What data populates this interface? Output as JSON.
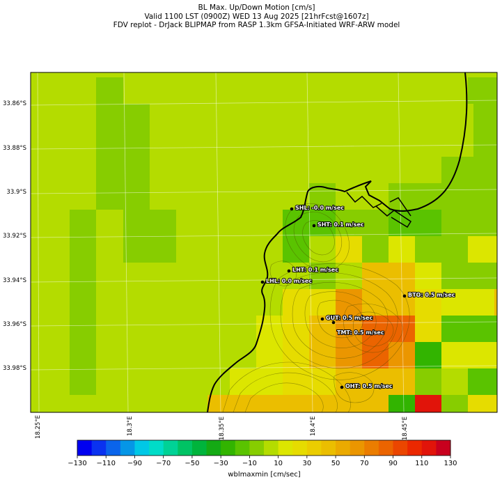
{
  "title": {
    "line1": "BL Max. Up/Down Motion [cm/s]",
    "line2": "Valid 1100 LST (0900Z) WED 13 Aug 2025 [21hrFcst@1607z]",
    "line3": "FDV replot - DrJack BLIPMAP from RASP 1.3km GFSA-Initiated WRF-ARW model"
  },
  "map": {
    "lat_labels": [
      "33.86°S",
      "33.88°S",
      "33.9°S",
      "33.92°S",
      "33.94°S",
      "33.96°S",
      "33.98°S"
    ],
    "lon_labels": [
      "18.25°E",
      "18.3°E",
      "18.35°E",
      "18.4°E",
      "18.45°E"
    ],
    "stations": [
      {
        "code": "SHL",
        "label": "SHL: -0.0 m/sec",
        "value": -0.0
      },
      {
        "code": "SHT",
        "label": "SHT: 0.1 m/sec",
        "value": 0.1
      },
      {
        "code": "LHT",
        "label": "LHT: 0.1 m/sec",
        "value": 0.1
      },
      {
        "code": "LHL",
        "label": "LHL: 0.0 m/sec",
        "value": 0.0
      },
      {
        "code": "BTO",
        "label": "BTO: 0.5 m/sec",
        "value": 0.5
      },
      {
        "code": "GUT",
        "label": "GUT: 0.5 m/sec",
        "value": 0.5
      },
      {
        "code": "TMT",
        "label": "TMT: 0.5 m/sec",
        "value": 0.5
      },
      {
        "code": "OHT",
        "label": "OHT: 0.5 m/sec",
        "value": 0.5
      }
    ]
  },
  "colorbar": {
    "label": "wblmaxmin [cm/sec]",
    "ticks": [
      "−130",
      "−110",
      "−90",
      "−70",
      "−50",
      "−30",
      "−10",
      "10",
      "30",
      "50",
      "70",
      "90",
      "110",
      "130"
    ],
    "colors": [
      "#0000f0",
      "#0a32f0",
      "#0a64eb",
      "#0596e6",
      "#00c8e6",
      "#00dcc8",
      "#00d296",
      "#00c364",
      "#00b43c",
      "#14aa14",
      "#32b400",
      "#5ac300",
      "#87cd00",
      "#b4dc00",
      "#dce600",
      "#e6dc00",
      "#ebcd00",
      "#ebbe00",
      "#ebaa00",
      "#eb9600",
      "#eb7d00",
      "#eb6400",
      "#eb4600",
      "#eb2800",
      "#e1140a",
      "#c8001e"
    ]
  }
}
